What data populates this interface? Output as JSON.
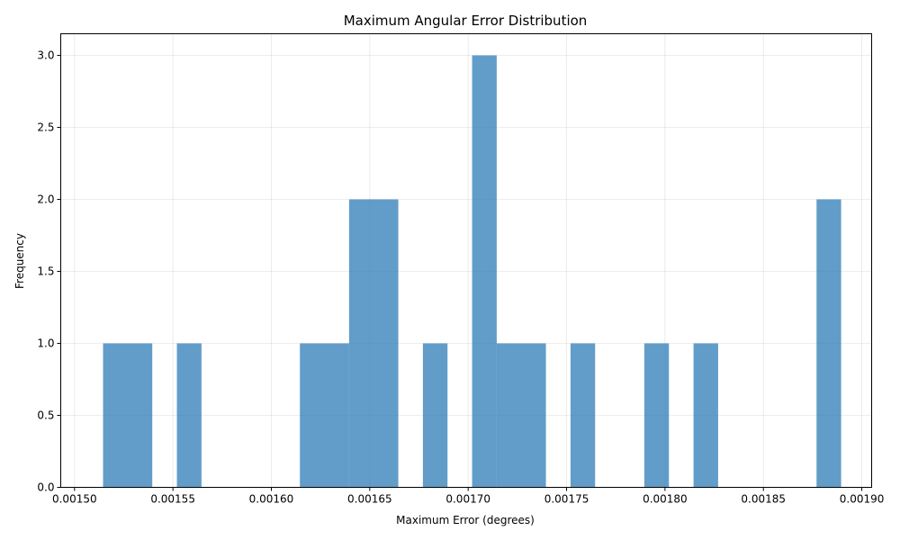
{
  "chart_data": {
    "type": "bar",
    "title": "Maximum Angular Error Distribution",
    "xlabel": "Maximum Error (degrees)",
    "ylabel": "Frequency",
    "xlim": [
      0.001493,
      0.001905
    ],
    "ylim": [
      0,
      3.15
    ],
    "x_ticks": [
      {
        "value": 0.0015,
        "label": "0.00150"
      },
      {
        "value": 0.00155,
        "label": "0.00155"
      },
      {
        "value": 0.0016,
        "label": "0.00160"
      },
      {
        "value": 0.00165,
        "label": "0.00165"
      },
      {
        "value": 0.0017,
        "label": "0.00170"
      },
      {
        "value": 0.00175,
        "label": "0.00175"
      },
      {
        "value": 0.0018,
        "label": "0.00180"
      },
      {
        "value": 0.00185,
        "label": "0.00185"
      },
      {
        "value": 0.0019,
        "label": "0.00190"
      }
    ],
    "y_ticks": [
      {
        "value": 0,
        "label": "0.0"
      },
      {
        "value": 0.5,
        "label": "0.5"
      },
      {
        "value": 1,
        "label": "1.0"
      },
      {
        "value": 1.5,
        "label": "1.5"
      },
      {
        "value": 2,
        "label": "2.0"
      },
      {
        "value": 2.5,
        "label": "2.5"
      },
      {
        "value": 3,
        "label": "3.0"
      }
    ],
    "grid": true,
    "bar_color": "#2878b5",
    "bar_opacity": 0.73,
    "bins": [
      {
        "start": 0.0015145,
        "end": 0.0015395,
        "count": 1
      },
      {
        "start": 0.001552,
        "end": 0.0015645,
        "count": 1
      },
      {
        "start": 0.0016145,
        "end": 0.0016395,
        "count": 1
      },
      {
        "start": 0.0016395,
        "end": 0.0016645,
        "count": 2
      },
      {
        "start": 0.001677,
        "end": 0.0016895,
        "count": 1
      },
      {
        "start": 0.001702,
        "end": 0.0017145,
        "count": 3
      },
      {
        "start": 0.0017145,
        "end": 0.0017395,
        "count": 1
      },
      {
        "start": 0.001752,
        "end": 0.0017645,
        "count": 1
      },
      {
        "start": 0.0017895,
        "end": 0.001802,
        "count": 1
      },
      {
        "start": 0.0018145,
        "end": 0.001827,
        "count": 1
      },
      {
        "start": 0.001877,
        "end": 0.0018895,
        "count": 2
      }
    ]
  }
}
